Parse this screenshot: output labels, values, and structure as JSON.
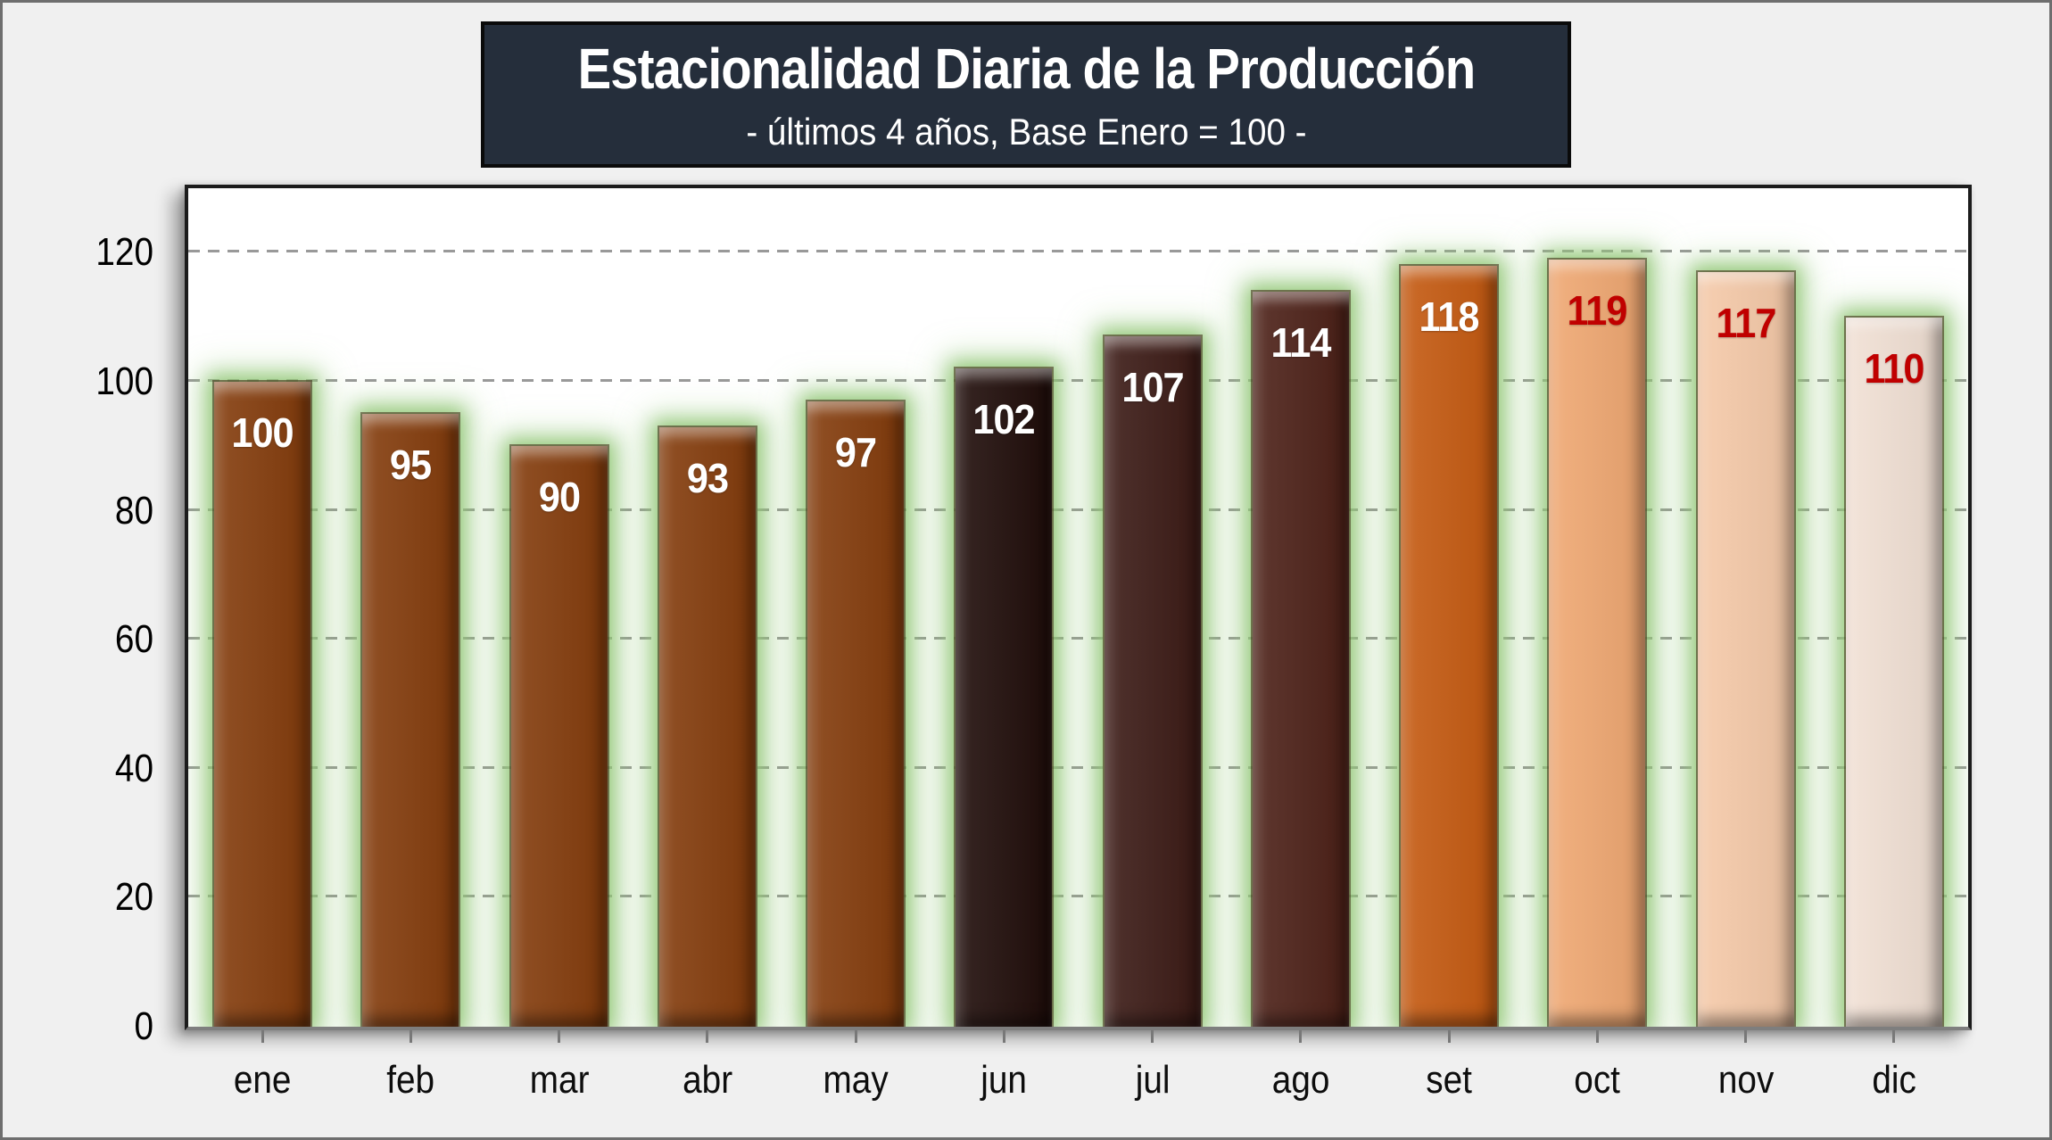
{
  "title": {
    "text": "Estacionalidad Diaria de la Producción",
    "subtitle": "- últimos 4 años, Base Enero = 100 -"
  },
  "chart_data": {
    "type": "bar",
    "title": "Estacionalidad Diaria de la Producción",
    "subtitle": "- últimos 4 años, Base Enero = 100 -",
    "categories": [
      "ene",
      "feb",
      "mar",
      "abr",
      "may",
      "jun",
      "jul",
      "ago",
      "set",
      "oct",
      "nov",
      "dic"
    ],
    "values": [
      100,
      95,
      90,
      93,
      97,
      102,
      107,
      114,
      118,
      119,
      117,
      110
    ],
    "xlabel": "",
    "ylabel": "",
    "ylim": [
      0,
      130
    ],
    "yticks": [
      0,
      20,
      40,
      60,
      80,
      100,
      120
    ],
    "grid": "horizontal-dashed",
    "legend": "none",
    "value_labels": "inside-top",
    "bars": [
      {
        "label": "ene",
        "value": 100,
        "bar_color": "#843C0C",
        "value_color": "#FFFFFF"
      },
      {
        "label": "feb",
        "value": 95,
        "bar_color": "#843C0C",
        "value_color": "#FFFFFF"
      },
      {
        "label": "mar",
        "value": 90,
        "bar_color": "#843C0C",
        "value_color": "#FFFFFF"
      },
      {
        "label": "abr",
        "value": 93,
        "bar_color": "#843C0C",
        "value_color": "#FFFFFF"
      },
      {
        "label": "may",
        "value": 97,
        "bar_color": "#843C0C",
        "value_color": "#FFFFFF"
      },
      {
        "label": "jun",
        "value": 102,
        "bar_color": "#200D0A",
        "value_color": "#FFFFFF"
      },
      {
        "label": "jul",
        "value": 107,
        "bar_color": "#3C1B16",
        "value_color": "#FFFFFF"
      },
      {
        "label": "ago",
        "value": 114,
        "bar_color": "#4D2118",
        "value_color": "#FFFFFF"
      },
      {
        "label": "set",
        "value": 118,
        "bar_color": "#C55A11",
        "value_color": "#FFFFFF"
      },
      {
        "label": "oct",
        "value": 119,
        "bar_color": "#F0A872",
        "value_color": "#C00000"
      },
      {
        "label": "nov",
        "value": 117,
        "bar_color": "#F6CAA9",
        "value_color": "#C00000"
      },
      {
        "label": "dic",
        "value": 110,
        "bar_color": "#F2E1D5",
        "value_color": "#C00000"
      }
    ]
  },
  "style": {
    "background": "#F0F0F0",
    "plot_background": "#FFFFFF",
    "title_background": "#252E3B",
    "title_text_color": "#FFFFFF",
    "grid_color": "#999999",
    "glow_color": "#92C777",
    "axis_color": "#7E7E7E",
    "highlight_value_color": "#C00000"
  }
}
